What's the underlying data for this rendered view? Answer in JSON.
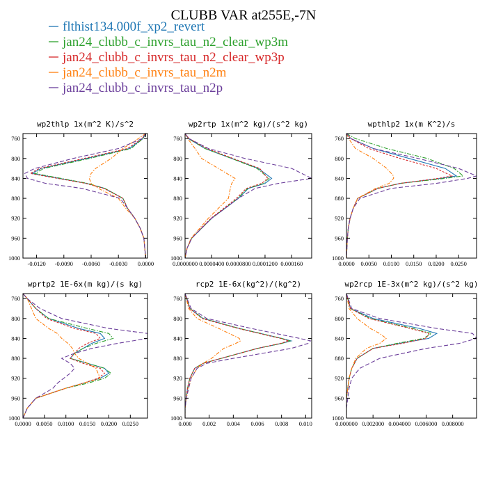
{
  "figure": {
    "title": "CLUBB VAR at255E,-7N"
  },
  "legend": [
    {
      "label": "flthist134.000f_xp2_revert",
      "color": "#1f77b4"
    },
    {
      "label": "jan24_clubb_c_invrs_tau_n2_clear_wp3m",
      "color": "#2ca02c"
    },
    {
      "label": "jan24_clubb_c_invrs_tau_n2_clear_wp3p",
      "color": "#d62728"
    },
    {
      "label": "jan24_clubb_c_invrs_tau_n2m",
      "color": "#ff7f0e"
    },
    {
      "label": "jan24_clubb_c_invrs_tau_n2p",
      "color": "#6a3d9a"
    }
  ],
  "chart_data": [
    {
      "type": "line",
      "title": "wp2thlp  1x(m^2 K)/s^2",
      "xlim": [
        -0.0135,
        0.0002
      ],
      "ylim": [
        1000,
        750
      ],
      "xticks": [
        -0.012,
        -0.009,
        -0.006,
        -0.003,
        0.0
      ],
      "xtick_labels": [
        "-0.0120",
        "-0.0090",
        "-0.0060",
        "-0.0030",
        "0.0000"
      ],
      "yticks": [
        760,
        800,
        840,
        880,
        920,
        960,
        1000
      ],
      "y": [
        750,
        760,
        780,
        800,
        820,
        830,
        840,
        850,
        860,
        880,
        900,
        920,
        940,
        960,
        980,
        1000
      ],
      "series": [
        {
          "name": "flthist134.000f_xp2_revert",
          "values": [
            0.0,
            -0.0003,
            -0.0018,
            -0.0065,
            -0.0115,
            -0.0125,
            -0.0095,
            -0.0065,
            -0.0045,
            -0.0025,
            -0.002,
            -0.0012,
            -0.0006,
            -0.0002,
            -0.0001,
            0.0
          ]
        },
        {
          "name": "jan24_clubb_c_invrs_tau_n2_clear_wp3m",
          "values": [
            0.0,
            -0.0003,
            -0.0016,
            -0.0062,
            -0.0112,
            -0.0122,
            -0.0093,
            -0.0064,
            -0.0045,
            -0.0025,
            -0.002,
            -0.0012,
            -0.0006,
            -0.0002,
            -0.0001,
            0.0
          ]
        },
        {
          "name": "jan24_clubb_c_invrs_tau_n2_clear_wp3p",
          "values": [
            0.0,
            -0.0004,
            -0.002,
            -0.0068,
            -0.0117,
            -0.0127,
            -0.0097,
            -0.0066,
            -0.0046,
            -0.0025,
            -0.002,
            -0.0012,
            -0.0006,
            -0.0002,
            -0.0001,
            0.0
          ]
        },
        {
          "name": "jan24_clubb_c_invrs_tau_n2m",
          "values": [
            0.0,
            -0.0008,
            -0.0025,
            -0.0038,
            -0.0055,
            -0.006,
            -0.0062,
            -0.006,
            -0.0052,
            -0.003,
            -0.0022,
            -0.0012,
            -0.0006,
            -0.0002,
            -0.0001,
            0.0
          ]
        },
        {
          "name": "jan24_clubb_c_invrs_tau_n2p",
          "values": [
            0.0,
            -0.0004,
            -0.003,
            -0.008,
            -0.0122,
            -0.0133,
            -0.013,
            -0.011,
            -0.007,
            -0.0028,
            -0.002,
            -0.0012,
            -0.0006,
            -0.0002,
            -0.0001,
            0.0
          ]
        }
      ]
    },
    {
      "type": "line",
      "title": "wp2rtp  1x(m^2 kg)/(s^2 kg)",
      "xlim": [
        0.0,
        0.00019
      ],
      "ylim": [
        1000,
        750
      ],
      "xticks": [
        0.0,
        4e-05,
        8e-05,
        0.00012,
        0.00016
      ],
      "xtick_labels": [
        "0.0000000",
        "0.0000400",
        "0.0000800",
        "0.0001200",
        "0.000160"
      ],
      "yticks": [
        760,
        800,
        840,
        880,
        920,
        960,
        1000
      ],
      "y": [
        750,
        760,
        780,
        800,
        820,
        840,
        850,
        860,
        880,
        900,
        920,
        940,
        960,
        980,
        1000
      ],
      "series": [
        {
          "name": "flthist134.000f_xp2_revert",
          "values": [
            0.0,
            5e-06,
            3e-05,
            7e-05,
            0.00011,
            0.00013,
            0.00012,
            9.5e-05,
            8e-05,
            6e-05,
            4e-05,
            2.5e-05,
            1e-05,
            3e-06,
            0.0
          ]
        },
        {
          "name": "jan24_clubb_c_invrs_tau_n2_clear_wp3m",
          "values": [
            0.0,
            5e-06,
            3e-05,
            7e-05,
            0.000108,
            0.000126,
            0.000118,
            9.4e-05,
            7.9e-05,
            6e-05,
            4e-05,
            2.5e-05,
            1e-05,
            3e-06,
            0.0
          ]
        },
        {
          "name": "jan24_clubb_c_invrs_tau_n2_clear_wp3p",
          "values": [
            0.0,
            6e-06,
            3.3e-05,
            7.2e-05,
            0.000112,
            0.000124,
            0.000115,
            9.2e-05,
            7.7e-05,
            5.8e-05,
            3.9e-05,
            2.4e-05,
            1e-05,
            3e-06,
            0.0
          ]
        },
        {
          "name": "jan24_clubb_c_invrs_tau_n2m",
          "values": [
            0.0,
            4e-06,
            1.5e-05,
            2.5e-05,
            5e-05,
            7.5e-05,
            7e-05,
            6.8e-05,
            6.5e-05,
            5e-05,
            3.5e-05,
            2.2e-05,
            9e-06,
            3e-06,
            0.0
          ]
        },
        {
          "name": "jan24_clubb_c_invrs_tau_n2p",
          "values": [
            0.0,
            6e-06,
            3.5e-05,
            9e-05,
            0.00016,
            0.00019,
            0.00014,
            0.000105,
            8e-05,
            6e-05,
            4e-05,
            2.5e-05,
            1e-05,
            3e-06,
            0.0
          ]
        }
      ]
    },
    {
      "type": "line",
      "title": "wpthlp2  1x(m K^2)/s",
      "xlim": [
        0.0,
        0.029
      ],
      "ylim": [
        1000,
        750
      ],
      "xticks": [
        0.0,
        0.005,
        0.01,
        0.015,
        0.02,
        0.025
      ],
      "xtick_labels": [
        "0.0000",
        "0.0050",
        "0.0100",
        "0.0150",
        "0.0200",
        "0.0250"
      ],
      "yticks": [
        760,
        800,
        840,
        880,
        920,
        960,
        1000
      ],
      "y": [
        750,
        760,
        780,
        800,
        820,
        835,
        840,
        850,
        860,
        880,
        900,
        920,
        940,
        960,
        980,
        1000
      ],
      "series": [
        {
          "name": "flthist134.000f_xp2_revert",
          "values": [
            0.0,
            0.001,
            0.006,
            0.014,
            0.022,
            0.0245,
            0.021,
            0.012,
            0.007,
            0.0025,
            0.0015,
            0.0008,
            0.0004,
            0.0002,
            0.0001,
            0.0
          ]
        },
        {
          "name": "jan24_clubb_c_invrs_tau_n2_clear_wp3m",
          "values": [
            0.0,
            0.002,
            0.009,
            0.018,
            0.024,
            0.026,
            0.022,
            0.012,
            0.007,
            0.0025,
            0.0015,
            0.0008,
            0.0004,
            0.0002,
            0.0001,
            0.0
          ]
        },
        {
          "name": "jan24_clubb_c_invrs_tau_n2_clear_wp3p",
          "values": [
            0.0,
            0.001,
            0.005,
            0.012,
            0.02,
            0.0235,
            0.0205,
            0.012,
            0.007,
            0.0025,
            0.0015,
            0.0008,
            0.0004,
            0.0002,
            0.0001,
            0.0
          ]
        },
        {
          "name": "jan24_clubb_c_invrs_tau_n2m",
          "values": [
            0.0,
            0.0005,
            0.002,
            0.006,
            0.009,
            0.0105,
            0.0105,
            0.0095,
            0.0065,
            0.0025,
            0.0015,
            0.0008,
            0.0004,
            0.0002,
            0.0001,
            0.0
          ]
        },
        {
          "name": "jan24_clubb_c_invrs_tau_n2p",
          "values": [
            0.0,
            0.001,
            0.006,
            0.016,
            0.025,
            0.029,
            0.027,
            0.02,
            0.01,
            0.003,
            0.0015,
            0.0008,
            0.0004,
            0.0002,
            0.0001,
            0.0
          ]
        }
      ]
    },
    {
      "type": "line",
      "title": "wprtp2  1E-6x(m kg)/(s kg)",
      "xlim": [
        0.0,
        0.029
      ],
      "ylim": [
        1000,
        750
      ],
      "xticks": [
        0.0,
        0.005,
        0.01,
        0.015,
        0.02,
        0.025
      ],
      "xtick_labels": [
        "0.0000",
        "0.0050",
        "0.0100",
        "0.0150",
        "0.0200",
        "0.0250"
      ],
      "yticks": [
        760,
        800,
        840,
        880,
        920,
        960,
        1000
      ],
      "y": [
        750,
        760,
        780,
        800,
        820,
        830,
        840,
        850,
        860,
        870,
        880,
        890,
        900,
        910,
        920,
        930,
        940,
        960,
        980,
        1000
      ],
      "series": [
        {
          "name": "flthist134.000f_xp2_revert",
          "values": [
            0.0,
            0.001,
            0.003,
            0.006,
            0.013,
            0.018,
            0.019,
            0.016,
            0.014,
            0.012,
            0.011,
            0.015,
            0.019,
            0.02,
            0.018,
            0.014,
            0.01,
            0.003,
            0.001,
            0.0
          ]
        },
        {
          "name": "jan24_clubb_c_invrs_tau_n2_clear_wp3m",
          "values": [
            0.0,
            0.001,
            0.003,
            0.006,
            0.015,
            0.02,
            0.021,
            0.017,
            0.014,
            0.012,
            0.011,
            0.015,
            0.019,
            0.0205,
            0.019,
            0.015,
            0.01,
            0.003,
            0.001,
            0.0
          ]
        },
        {
          "name": "jan24_clubb_c_invrs_tau_n2_clear_wp3p",
          "values": [
            0.0,
            0.001,
            0.003,
            0.0055,
            0.012,
            0.017,
            0.018,
            0.015,
            0.013,
            0.012,
            0.011,
            0.014,
            0.018,
            0.019,
            0.0175,
            0.014,
            0.01,
            0.003,
            0.001,
            0.0
          ]
        },
        {
          "name": "jan24_clubb_c_invrs_tau_n2m",
          "values": [
            0.0,
            0.001,
            0.002,
            0.003,
            0.006,
            0.008,
            0.009,
            0.0105,
            0.0115,
            0.012,
            0.013,
            0.015,
            0.017,
            0.0175,
            0.018,
            0.014,
            0.01,
            0.003,
            0.001,
            0.0
          ]
        },
        {
          "name": "jan24_clubb_c_invrs_tau_n2p",
          "values": [
            0.0,
            0.001,
            0.004,
            0.009,
            0.02,
            0.029,
            0.029,
            0.022,
            0.016,
            0.012,
            0.009,
            0.011,
            0.012,
            0.011,
            0.0095,
            0.008,
            0.007,
            0.003,
            0.001,
            0.0
          ]
        }
      ]
    },
    {
      "type": "line",
      "title": "rcp2  1E-6x(kg^2)/(kg^2)",
      "xlim": [
        0.0,
        0.0105
      ],
      "ylim": [
        1000,
        750
      ],
      "xticks": [
        0.0,
        0.002,
        0.004,
        0.006,
        0.008,
        0.01
      ],
      "xtick_labels": [
        "0.000",
        "0.002",
        "0.004",
        "0.006",
        "0.008",
        "0.010"
      ],
      "yticks": [
        760,
        800,
        840,
        880,
        920,
        960,
        1000
      ],
      "y": [
        750,
        780,
        800,
        820,
        840,
        845,
        850,
        860,
        880,
        890,
        900,
        920,
        940,
        960,
        980,
        1000
      ],
      "series": [
        {
          "name": "flthist134.000f_xp2_revert",
          "values": [
            0.0,
            0.0004,
            0.0015,
            0.0045,
            0.008,
            0.0088,
            0.008,
            0.006,
            0.003,
            0.0015,
            0.0008,
            0.0004,
            0.0002,
            0.0001,
            0.0,
            0.0
          ]
        },
        {
          "name": "jan24_clubb_c_invrs_tau_n2_clear_wp3m",
          "values": [
            0.0,
            0.0004,
            0.0015,
            0.0045,
            0.008,
            0.0087,
            0.008,
            0.006,
            0.003,
            0.0015,
            0.0008,
            0.0004,
            0.0002,
            0.0001,
            0.0,
            0.0
          ]
        },
        {
          "name": "jan24_clubb_c_invrs_tau_n2_clear_wp3p",
          "values": [
            0.0,
            0.0004,
            0.0014,
            0.0044,
            0.0079,
            0.0086,
            0.0079,
            0.006,
            0.003,
            0.0015,
            0.0008,
            0.0004,
            0.0002,
            0.0001,
            0.0,
            0.0
          ]
        },
        {
          "name": "jan24_clubb_c_invrs_tau_n2m",
          "values": [
            0.0,
            0.0003,
            0.001,
            0.0028,
            0.0045,
            0.0046,
            0.0042,
            0.0032,
            0.0022,
            0.0015,
            0.001,
            0.0005,
            0.0003,
            0.0001,
            0.0,
            0.0
          ]
        },
        {
          "name": "jan24_clubb_c_invrs_tau_n2p",
          "values": [
            0.0,
            0.0005,
            0.0018,
            0.0055,
            0.0095,
            0.0104,
            0.0102,
            0.0088,
            0.004,
            0.0018,
            0.001,
            0.0005,
            0.0003,
            0.0001,
            0.0,
            0.0
          ]
        }
      ]
    },
    {
      "type": "line",
      "title": "wp2rcp  1E-3x(m^2 kg)/(s^2 kg)",
      "xlim": [
        0.0,
        0.0098
      ],
      "ylim": [
        1000,
        750
      ],
      "xticks": [
        0.0,
        0.002,
        0.004,
        0.006,
        0.008
      ],
      "xtick_labels": [
        "0.000000",
        "0.002000",
        "0.004000",
        "0.006000",
        "0.008000"
      ],
      "yticks": [
        760,
        800,
        840,
        880,
        920,
        960,
        1000
      ],
      "y": [
        750,
        780,
        800,
        820,
        830,
        840,
        850,
        860,
        880,
        900,
        920,
        940,
        960,
        980,
        1000
      ],
      "series": [
        {
          "name": "flthist134.000f_xp2_revert",
          "values": [
            0.0,
            0.0003,
            0.002,
            0.0055,
            0.0068,
            0.0062,
            0.004,
            0.002,
            0.0008,
            0.0004,
            0.0002,
            0.0001,
            0.0,
            0.0,
            0.0
          ]
        },
        {
          "name": "jan24_clubb_c_invrs_tau_n2_clear_wp3m",
          "values": [
            0.0,
            0.0003,
            0.0018,
            0.005,
            0.0064,
            0.0058,
            0.0038,
            0.002,
            0.0008,
            0.0004,
            0.0002,
            0.0001,
            0.0,
            0.0,
            0.0
          ]
        },
        {
          "name": "jan24_clubb_c_invrs_tau_n2_clear_wp3p",
          "values": [
            0.0,
            0.0003,
            0.0017,
            0.0048,
            0.0062,
            0.006,
            0.0042,
            0.002,
            0.0008,
            0.0004,
            0.0002,
            0.0001,
            0.0,
            0.0,
            0.0
          ]
        },
        {
          "name": "jan24_clubb_c_invrs_tau_n2m",
          "values": [
            0.0,
            0.0002,
            0.0008,
            0.0018,
            0.0025,
            0.003,
            0.0025,
            0.0015,
            0.0007,
            0.0004,
            0.0002,
            0.0001,
            0.0,
            0.0,
            0.0
          ]
        },
        {
          "name": "jan24_clubb_c_invrs_tau_n2p",
          "values": [
            0.0,
            0.0004,
            0.0025,
            0.0068,
            0.0095,
            0.0098,
            0.0085,
            0.006,
            0.0025,
            0.001,
            0.0004,
            0.0002,
            0.0001,
            0.0,
            0.0
          ]
        }
      ]
    }
  ]
}
